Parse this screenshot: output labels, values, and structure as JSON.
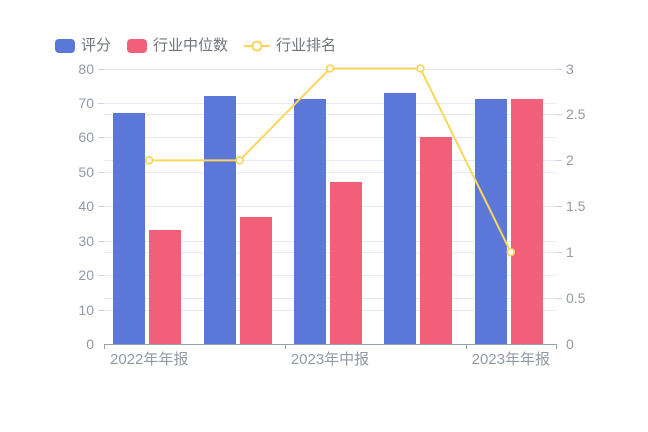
{
  "background": "#ffffff",
  "legend": {
    "items": [
      "评分",
      "行业中位数",
      "行业排名"
    ]
  },
  "chart_data": {
    "type": "bar+line",
    "categories": [
      "2022年年报",
      "",
      "2023年中报",
      "",
      "2023年年报"
    ],
    "x_tick_labels": [
      "2022年年报",
      "2023年中报",
      "2023年年报"
    ],
    "series": [
      {
        "name": "评分",
        "type": "bar",
        "axis": "left",
        "color": "#5b77d8",
        "values": [
          67,
          72,
          71,
          73,
          71
        ]
      },
      {
        "name": "行业中位数",
        "type": "bar",
        "axis": "left",
        "color": "#f25f79",
        "values": [
          33,
          37,
          47,
          60,
          71
        ]
      },
      {
        "name": "行业排名",
        "type": "line",
        "axis": "right",
        "color": "#fbd65d",
        "marker_fill": "#ffffff",
        "values": [
          2,
          2,
          3,
          3,
          1
        ]
      }
    ],
    "left_axis": {
      "min": 0,
      "max": 80,
      "step": 10,
      "tick_labels": [
        "0",
        "10",
        "20",
        "30",
        "40",
        "50",
        "60",
        "70",
        "80"
      ]
    },
    "right_axis": {
      "min": 0,
      "max": 3,
      "step": 0.5,
      "tick_labels": [
        "0",
        "0.5",
        "1",
        "1.5",
        "2",
        "2.5",
        "3"
      ]
    },
    "grid": true,
    "legend_position": "top-left",
    "colors": {
      "grid_line": "#e5e9f3",
      "axis_line": "#9ba1aa",
      "axis_text": "#939aa5",
      "legend_text": "#70757d"
    }
  }
}
